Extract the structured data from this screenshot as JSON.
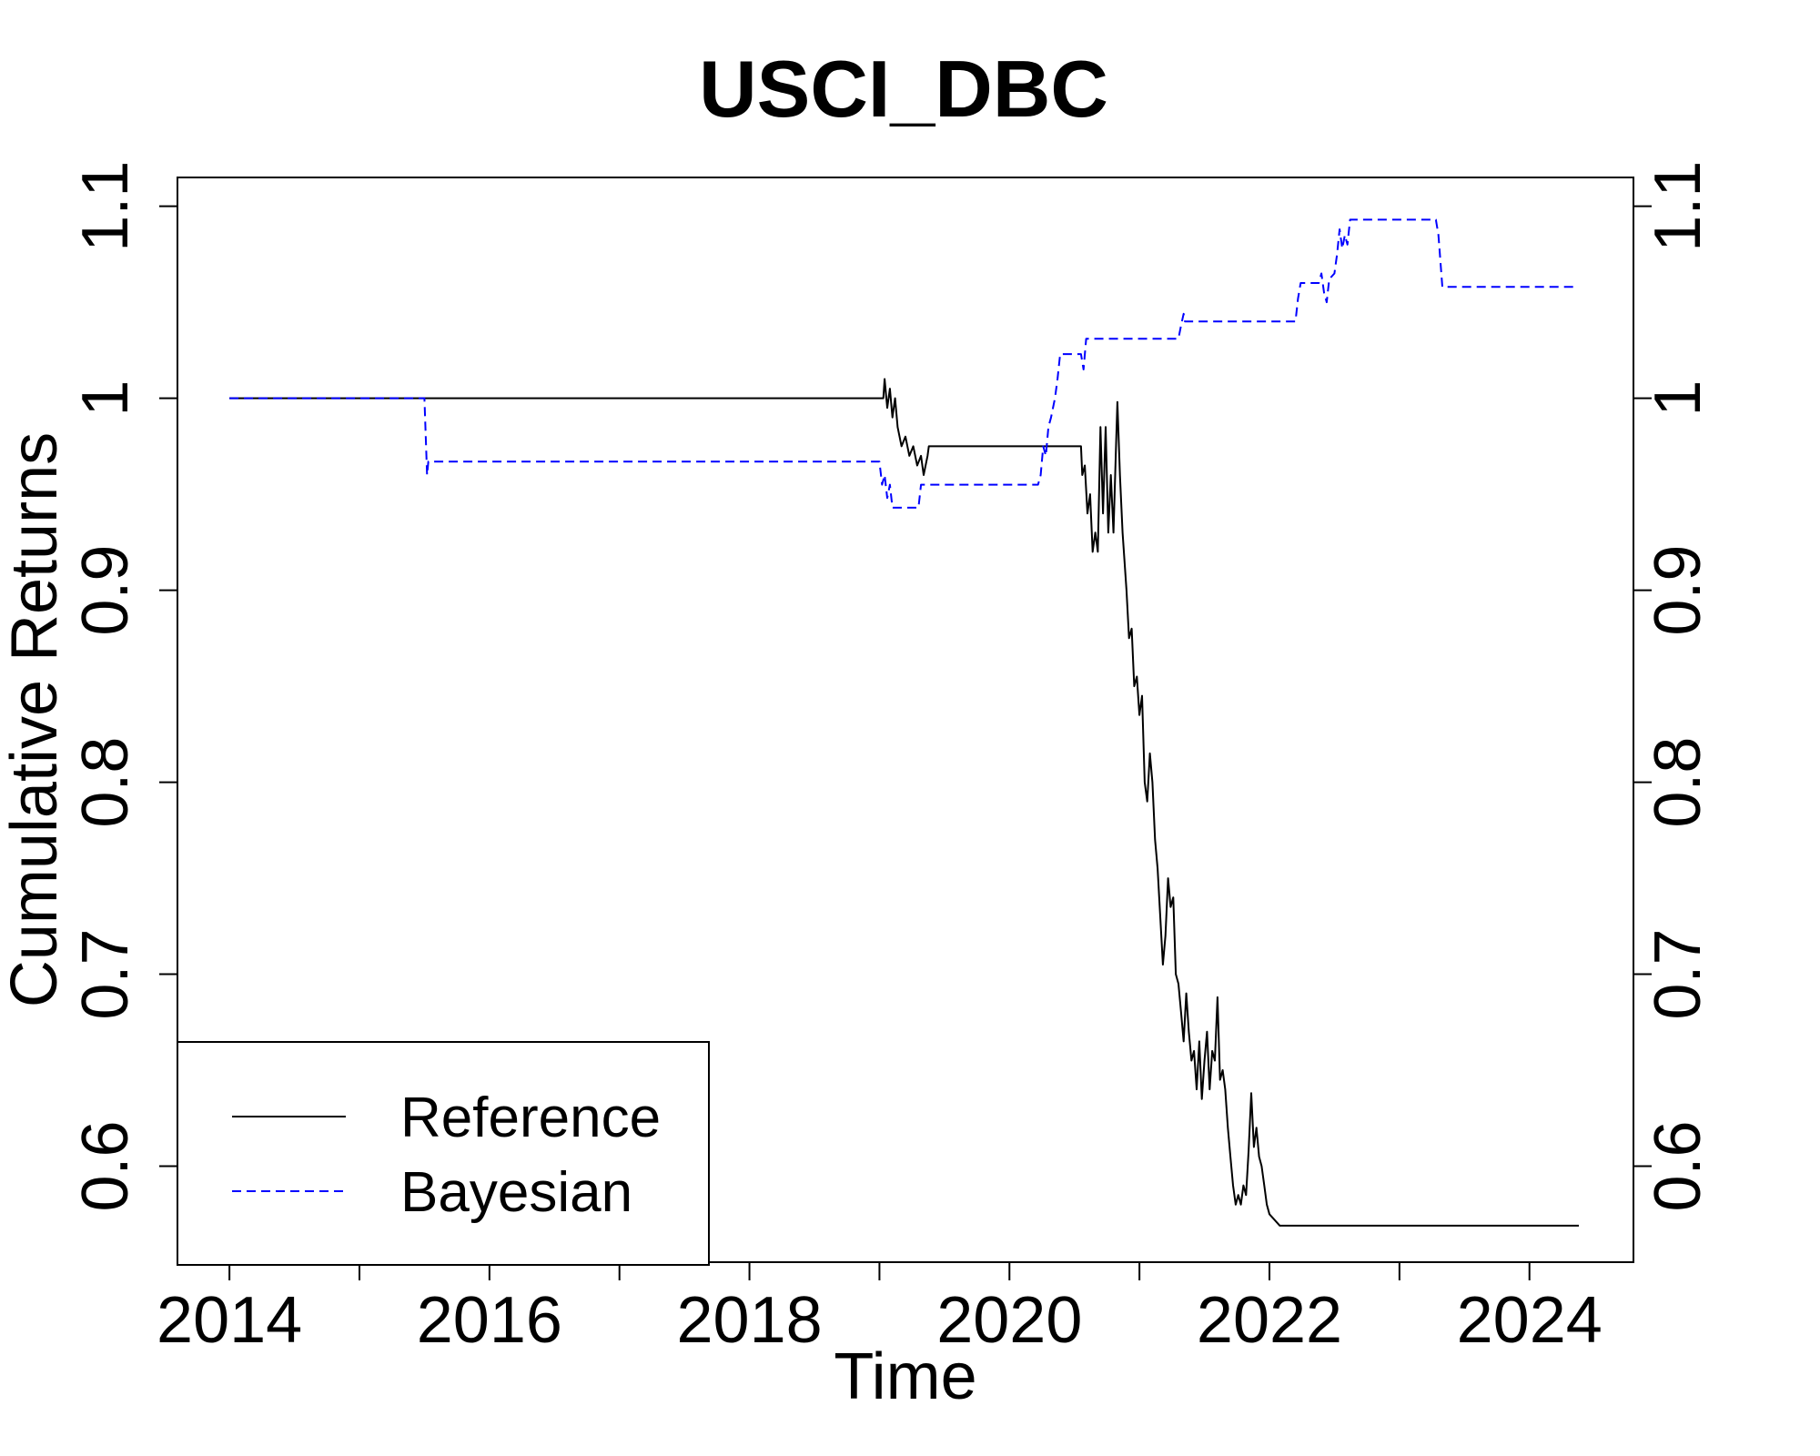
{
  "chart_data": {
    "type": "line",
    "title": "USCI_DBC",
    "xlabel": "Time",
    "ylabel": "Cumulative Returns",
    "xlim": [
      2013.6,
      2024.8
    ],
    "ylim": [
      0.55,
      1.115
    ],
    "x_ticks": [
      2014,
      2016,
      2018,
      2020,
      2022,
      2024
    ],
    "x_tick_labels": [
      "2014",
      "2016",
      "2018",
      "2020",
      "2022",
      "2024"
    ],
    "x_minor_ticks": [
      2015,
      2017,
      2019,
      2021,
      2023
    ],
    "y_ticks": [
      0.6,
      0.7,
      0.8,
      0.9,
      1.0,
      1.1
    ],
    "y_tick_labels": [
      "0.6",
      "0.7",
      "0.8",
      "0.9",
      "1",
      "1.1"
    ],
    "right_axis": true,
    "grid": false,
    "legend_position": "bottom-left",
    "series": [
      {
        "name": "Reference",
        "color": "#000000",
        "dash": "solid",
        "points": [
          [
            2014.0,
            1.0
          ],
          [
            2019.03,
            1.0
          ],
          [
            2019.04,
            1.01
          ],
          [
            2019.06,
            0.995
          ],
          [
            2019.08,
            1.005
          ],
          [
            2019.1,
            0.99
          ],
          [
            2019.12,
            1.0
          ],
          [
            2019.14,
            0.985
          ],
          [
            2019.17,
            0.975
          ],
          [
            2019.2,
            0.98
          ],
          [
            2019.23,
            0.97
          ],
          [
            2019.26,
            0.975
          ],
          [
            2019.29,
            0.965
          ],
          [
            2019.32,
            0.97
          ],
          [
            2019.34,
            0.96
          ],
          [
            2019.37,
            0.97
          ],
          [
            2019.38,
            0.975
          ],
          [
            2020.55,
            0.975
          ],
          [
            2020.56,
            0.96
          ],
          [
            2020.58,
            0.965
          ],
          [
            2020.6,
            0.94
          ],
          [
            2020.62,
            0.95
          ],
          [
            2020.64,
            0.92
          ],
          [
            2020.66,
            0.93
          ],
          [
            2020.68,
            0.92
          ],
          [
            2020.7,
            0.985
          ],
          [
            2020.72,
            0.94
          ],
          [
            2020.74,
            0.985
          ],
          [
            2020.76,
            0.93
          ],
          [
            2020.78,
            0.96
          ],
          [
            2020.8,
            0.93
          ],
          [
            2020.82,
            0.975
          ],
          [
            2020.83,
            0.998
          ],
          [
            2020.85,
            0.96
          ],
          [
            2020.87,
            0.93
          ],
          [
            2020.9,
            0.9
          ],
          [
            2020.92,
            0.875
          ],
          [
            2020.94,
            0.88
          ],
          [
            2020.96,
            0.85
          ],
          [
            2020.98,
            0.855
          ],
          [
            2021.0,
            0.835
          ],
          [
            2021.02,
            0.845
          ],
          [
            2021.04,
            0.8
          ],
          [
            2021.06,
            0.79
          ],
          [
            2021.08,
            0.815
          ],
          [
            2021.1,
            0.8
          ],
          [
            2021.12,
            0.77
          ],
          [
            2021.14,
            0.755
          ],
          [
            2021.16,
            0.73
          ],
          [
            2021.18,
            0.705
          ],
          [
            2021.2,
            0.72
          ],
          [
            2021.22,
            0.75
          ],
          [
            2021.24,
            0.735
          ],
          [
            2021.26,
            0.74
          ],
          [
            2021.28,
            0.7
          ],
          [
            2021.3,
            0.695
          ],
          [
            2021.32,
            0.68
          ],
          [
            2021.34,
            0.665
          ],
          [
            2021.36,
            0.69
          ],
          [
            2021.38,
            0.67
          ],
          [
            2021.4,
            0.655
          ],
          [
            2021.42,
            0.66
          ],
          [
            2021.44,
            0.64
          ],
          [
            2021.46,
            0.665
          ],
          [
            2021.48,
            0.635
          ],
          [
            2021.5,
            0.655
          ],
          [
            2021.52,
            0.67
          ],
          [
            2021.54,
            0.64
          ],
          [
            2021.56,
            0.66
          ],
          [
            2021.58,
            0.655
          ],
          [
            2021.6,
            0.688
          ],
          [
            2021.62,
            0.645
          ],
          [
            2021.64,
            0.65
          ],
          [
            2021.66,
            0.64
          ],
          [
            2021.68,
            0.62
          ],
          [
            2021.7,
            0.605
          ],
          [
            2021.72,
            0.59
          ],
          [
            2021.74,
            0.58
          ],
          [
            2021.76,
            0.585
          ],
          [
            2021.78,
            0.58
          ],
          [
            2021.8,
            0.59
          ],
          [
            2021.82,
            0.585
          ],
          [
            2021.84,
            0.608
          ],
          [
            2021.86,
            0.638
          ],
          [
            2021.88,
            0.61
          ],
          [
            2021.9,
            0.62
          ],
          [
            2021.92,
            0.605
          ],
          [
            2021.94,
            0.6
          ],
          [
            2021.96,
            0.59
          ],
          [
            2021.98,
            0.58
          ],
          [
            2022.0,
            0.575
          ],
          [
            2022.08,
            0.569
          ],
          [
            2024.38,
            0.569
          ]
        ]
      },
      {
        "name": "Bayesian",
        "color": "#0000ff",
        "dash": "dashed",
        "points": [
          [
            2014.0,
            1.0
          ],
          [
            2015.5,
            1.0
          ],
          [
            2015.52,
            0.96
          ],
          [
            2015.53,
            0.967
          ],
          [
            2019.0,
            0.967
          ],
          [
            2019.02,
            0.955
          ],
          [
            2019.04,
            0.96
          ],
          [
            2019.06,
            0.948
          ],
          [
            2019.08,
            0.955
          ],
          [
            2019.1,
            0.943
          ],
          [
            2019.3,
            0.943
          ],
          [
            2019.32,
            0.955
          ],
          [
            2020.22,
            0.955
          ],
          [
            2020.24,
            0.96
          ],
          [
            2020.26,
            0.975
          ],
          [
            2020.28,
            0.97
          ],
          [
            2020.3,
            0.985
          ],
          [
            2020.32,
            0.99
          ],
          [
            2020.35,
            1.0
          ],
          [
            2020.37,
            1.01
          ],
          [
            2020.39,
            1.023
          ],
          [
            2020.55,
            1.023
          ],
          [
            2020.57,
            1.015
          ],
          [
            2020.59,
            1.031
          ],
          [
            2021.3,
            1.031
          ],
          [
            2021.32,
            1.038
          ],
          [
            2021.34,
            1.044
          ],
          [
            2021.35,
            1.04
          ],
          [
            2022.2,
            1.04
          ],
          [
            2022.22,
            1.052
          ],
          [
            2022.24,
            1.06
          ],
          [
            2022.38,
            1.06
          ],
          [
            2022.4,
            1.065
          ],
          [
            2022.42,
            1.055
          ],
          [
            2022.44,
            1.05
          ],
          [
            2022.46,
            1.062
          ],
          [
            2022.5,
            1.065
          ],
          [
            2022.52,
            1.075
          ],
          [
            2022.54,
            1.088
          ],
          [
            2022.56,
            1.078
          ],
          [
            2022.58,
            1.085
          ],
          [
            2022.6,
            1.08
          ],
          [
            2022.62,
            1.093
          ],
          [
            2023.28,
            1.093
          ],
          [
            2023.3,
            1.085
          ],
          [
            2023.33,
            1.058
          ],
          [
            2024.35,
            1.058
          ]
        ]
      }
    ]
  }
}
